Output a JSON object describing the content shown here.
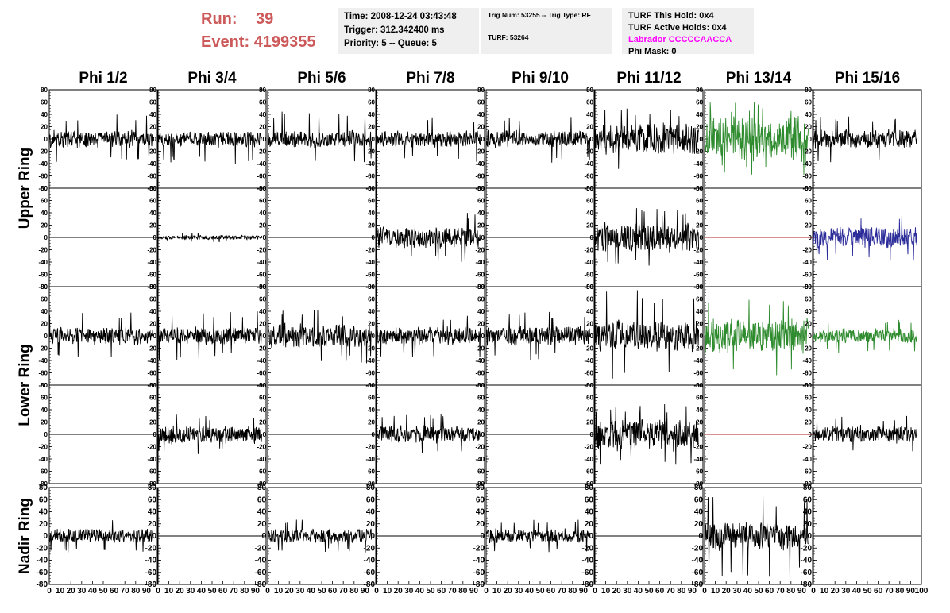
{
  "header": {
    "run_label": "Run:",
    "run_value": "39",
    "event_label": "Event:",
    "event_value": "4199355",
    "time_line": "Time: 2008-12-24 03:43:48",
    "trigger_line": "Trigger: 312.342400 ms",
    "priority_line": "Priority: 5 -- Queue: 5",
    "trig_num_line": "Trig Num: 53255 -- Trig Type: RF",
    "turf_line": "TURF: 53264",
    "turf_this_hold_line": "TURF This Hold: 0x4",
    "turf_active_holds_line": "TURF Active Holds: 0x4",
    "labrador_line": "Labrador CCCCCAACCA",
    "phi_mask_line": "Phi Mask: 0"
  },
  "colors": {
    "run_text": "#cd5a5a",
    "labrador_text": "#ff00ff",
    "trace_default": "#000000",
    "trace_green": "#2e8b2e",
    "trace_blue": "#2b2b9a",
    "trace_flat_red": "#b22222",
    "box_background": "#efefef"
  },
  "chart_data": {
    "type": "line",
    "columns": [
      "Phi 1/2",
      "Phi 3/4",
      "Phi 5/6",
      "Phi 7/8",
      "Phi 9/10",
      "Phi 11/12",
      "Phi 13/14",
      "Phi 15/16"
    ],
    "ring_labels": [
      {
        "label": "Upper Ring",
        "rows": [
          0,
          1
        ]
      },
      {
        "label": "Lower Ring",
        "rows": [
          2,
          3
        ]
      },
      {
        "label": "Nadir Ring",
        "rows": [
          4
        ]
      }
    ],
    "ylim": [
      -80,
      80
    ],
    "yticks": [
      -80,
      -60,
      -40,
      -20,
      0,
      20,
      40,
      60,
      80
    ],
    "xlim": [
      0,
      100
    ],
    "xticks": [
      0,
      10,
      20,
      30,
      40,
      50,
      60,
      70,
      80,
      90,
      100
    ],
    "n_samples": 260,
    "panels": [
      [
        {
          "color": "default",
          "amp": 12,
          "spike": 40
        },
        {
          "color": "default",
          "amp": 11,
          "spike": 40
        },
        {
          "color": "default",
          "amp": 12,
          "spike": 45
        },
        {
          "color": "default",
          "amp": 11,
          "spike": 38
        },
        {
          "color": "default",
          "amp": 12,
          "spike": 40
        },
        {
          "color": "default",
          "amp": 22,
          "spike": 50
        },
        {
          "color": "green",
          "amp": 30,
          "spike": 60
        },
        {
          "color": "default",
          "amp": 13,
          "spike": 38
        }
      ],
      [
        {
          "color": "default",
          "amp": 0,
          "spike": 0
        },
        {
          "color": "default",
          "amp": 3,
          "spike": 8
        },
        {
          "color": "default",
          "amp": 0,
          "spike": 0
        },
        {
          "color": "default",
          "amp": 15,
          "spike": 40
        },
        {
          "color": "default",
          "amp": 0,
          "spike": 0
        },
        {
          "color": "default",
          "amp": 20,
          "spike": 48
        },
        {
          "color": "flat_red",
          "amp": 0,
          "spike": 0
        },
        {
          "color": "blue",
          "amp": 14,
          "spike": 38
        }
      ],
      [
        {
          "color": "default",
          "amp": 12,
          "spike": 40
        },
        {
          "color": "default",
          "amp": 12,
          "spike": 40
        },
        {
          "color": "default",
          "amp": 16,
          "spike": 45
        },
        {
          "color": "default",
          "amp": 12,
          "spike": 35
        },
        {
          "color": "default",
          "amp": 13,
          "spike": 40
        },
        {
          "color": "default",
          "amp": 22,
          "spike": 75
        },
        {
          "color": "green",
          "amp": 24,
          "spike": 65
        },
        {
          "color": "green",
          "amp": 10,
          "spike": 28
        }
      ],
      [
        {
          "color": "default",
          "amp": 0,
          "spike": 0
        },
        {
          "color": "default",
          "amp": 13,
          "spike": 32
        },
        {
          "color": "default",
          "amp": 0,
          "spike": 0
        },
        {
          "color": "default",
          "amp": 12,
          "spike": 35
        },
        {
          "color": "default",
          "amp": 0,
          "spike": 0
        },
        {
          "color": "default",
          "amp": 22,
          "spike": 50
        },
        {
          "color": "flat_red",
          "amp": 0,
          "spike": 0
        },
        {
          "color": "default",
          "amp": 12,
          "spike": 30
        }
      ],
      [
        {
          "color": "default",
          "amp": 10,
          "spike": 28
        },
        {
          "color": "default",
          "amp": 0,
          "spike": 0
        },
        {
          "color": "default",
          "amp": 10,
          "spike": 28
        },
        {
          "color": "default",
          "amp": 0,
          "spike": 0
        },
        {
          "color": "default",
          "amp": 10,
          "spike": 28
        },
        {
          "color": "default",
          "amp": 0,
          "spike": 0
        },
        {
          "color": "default",
          "amp": 20,
          "spike": 70
        },
        {
          "color": "default",
          "amp": 0,
          "spike": 0
        }
      ]
    ]
  }
}
